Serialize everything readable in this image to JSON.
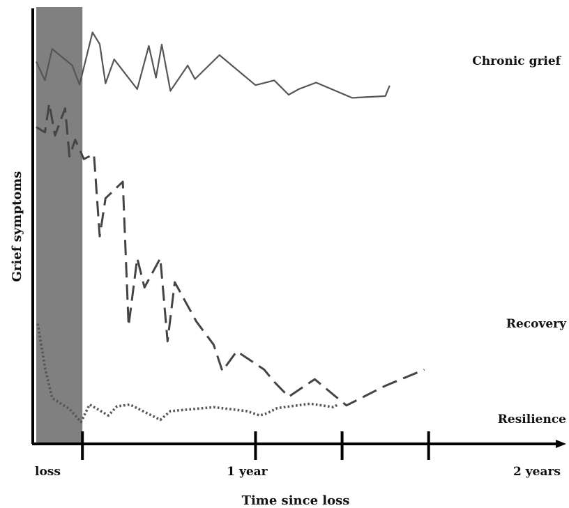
{
  "chart_data": {
    "type": "line",
    "xlabel": "Time since loss",
    "ylabel": "Grief symptoms",
    "x_tick_labels": [
      "loss",
      "1 year",
      "2 years"
    ],
    "x_ticks": [
      0,
      12,
      24
    ],
    "xlim": [
      -3.2,
      33.2
    ],
    "ylim": [
      0,
      100
    ],
    "grid": false,
    "shaded_region": {
      "x_start": -3.2,
      "x_end": 0,
      "color": "#808080"
    },
    "series": [
      {
        "name": "Chronic grief",
        "style": "solid",
        "color": "#555555",
        "x": [
          -3.2,
          -2.6,
          -2.1,
          -0.7,
          -0.2,
          0.7,
          1.2,
          1.6,
          2.2,
          3.8,
          4.6,
          5.1,
          5.5,
          6.1,
          7.3,
          7.8,
          9.5,
          12.0,
          13.3,
          14.3,
          15.0,
          16.2,
          18.7,
          21.0,
          21.3
        ],
        "y": [
          87.5,
          83.2,
          90.4,
          86.6,
          82.2,
          94.2,
          91.5,
          82.5,
          88.0,
          81.2,
          91.1,
          83.8,
          91.4,
          80.8,
          86.6,
          83.5,
          89.0,
          82.1,
          83.2,
          79.9,
          81.2,
          82.7,
          79.2,
          79.6,
          82.0
        ]
      },
      {
        "name": "Recovery",
        "style": "dashed",
        "color": "#444444",
        "x": [
          -3.2,
          -2.6,
          -2.3,
          -1.9,
          -1.2,
          -0.9,
          -0.5,
          0.1,
          0.8,
          1.2,
          1.6,
          2.8,
          3.2,
          3.8,
          4.3,
          5.4,
          5.9,
          6.4,
          7.9,
          9.1,
          9.7,
          10.7,
          12.6,
          13.3,
          14.3,
          16.1,
          18.3,
          21.0,
          23.7
        ],
        "y": [
          72.5,
          71.3,
          77.9,
          70.6,
          76.8,
          65.8,
          69.6,
          65.2,
          66.3,
          47.5,
          56.2,
          60.0,
          27.0,
          42.5,
          35.8,
          42.5,
          23.5,
          37.0,
          28.0,
          22.7,
          16.7,
          21.2,
          17.0,
          14.2,
          10.8,
          14.8,
          8.8,
          13.3,
          17.0
        ]
      },
      {
        "name": "Resilience",
        "style": "dotted",
        "color": "#555555",
        "x": [
          -3.1,
          -2.6,
          -2.1,
          -0.9,
          -0.1,
          0.5,
          1.8,
          2.4,
          3.3,
          5.4,
          6.1,
          9.1,
          11.4,
          12.3,
          12.8,
          13.5,
          15.8,
          17.4,
          17.7
        ],
        "y": [
          27.5,
          17.5,
          10.5,
          8.0,
          5.0,
          9.0,
          6.5,
          8.6,
          9.0,
          5.5,
          7.5,
          8.4,
          7.5,
          6.5,
          7.0,
          8.2,
          9.2,
          8.4,
          9.0
        ]
      }
    ]
  }
}
